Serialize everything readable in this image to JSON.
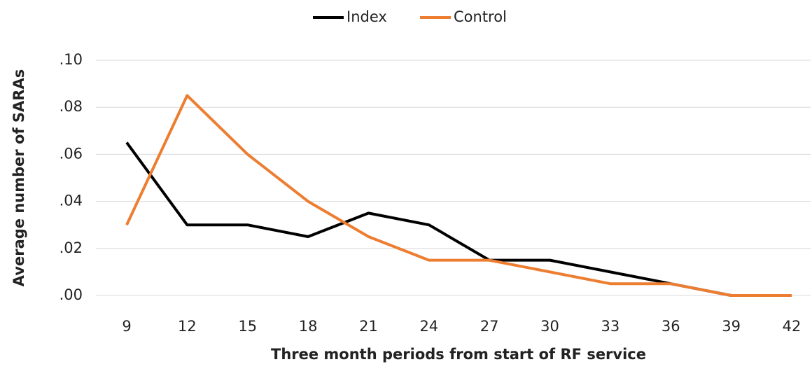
{
  "chart_data": {
    "type": "line",
    "x_label": "Three month periods from start of RF service",
    "y_label": "Average number of SARAs",
    "categories": [
      "9",
      "12",
      "15",
      "18",
      "21",
      "24",
      "27",
      "30",
      "33",
      "36",
      "39",
      "42"
    ],
    "series": [
      {
        "name": "Index",
        "color": "#000000",
        "values": [
          0.065,
          0.03,
          0.03,
          0.025,
          0.035,
          0.03,
          0.015,
          0.015,
          0.01,
          0.005,
          0,
          0
        ]
      },
      {
        "name": "Control",
        "color": "#ed7d31",
        "values": [
          0.03,
          0.085,
          0.06,
          0.04,
          0.025,
          0.015,
          0.015,
          0.01,
          0.005,
          0.005,
          0,
          0
        ]
      }
    ],
    "ylim": [
      0,
      0.1
    ],
    "yticks": [
      {
        "value": 0,
        "label": ".00"
      },
      {
        "value": 0.02,
        "label": ".02"
      },
      {
        "value": 0.04,
        "label": ".04"
      },
      {
        "value": 0.06,
        "label": ".06"
      },
      {
        "value": 0.08,
        "label": ".08"
      },
      {
        "value": 0.1,
        "label": ".10"
      }
    ],
    "grid": true,
    "legend": "top"
  }
}
